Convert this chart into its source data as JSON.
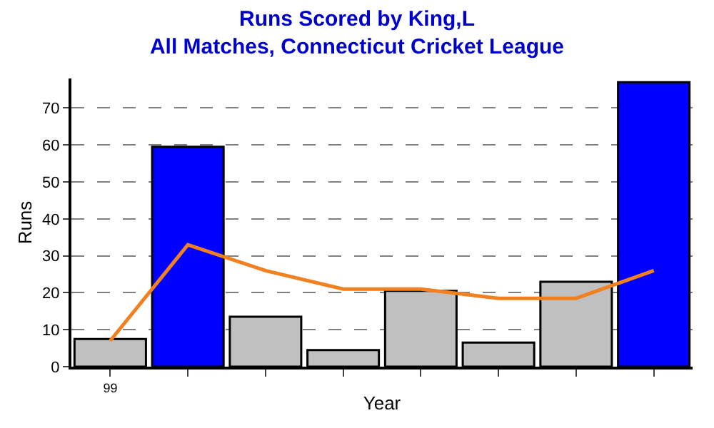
{
  "chart_data": {
    "type": "bar",
    "title": "Runs Scored by King,L",
    "subtitle": "All Matches, Connecticut Cricket League",
    "xlabel": "Year",
    "ylabel": "Runs",
    "categories": [
      "99",
      null,
      null,
      null,
      null,
      null,
      null,
      null
    ],
    "series": [
      {
        "colors": [
          "#c0c0c0",
          "#0000ff",
          "#c0c0c0",
          "#c0c0c0",
          "#c0c0c0",
          "#c0c0c0",
          "#c0c0c0",
          "#0000ff"
        ],
        "values": [
          7.5,
          59.5,
          13.5,
          4.5,
          20.5,
          6.5,
          23,
          77
        ]
      },
      {
        "type": "line",
        "color": "#f08020",
        "values": [
          7,
          33,
          26,
          21,
          21,
          18.5,
          18.5,
          26
        ]
      }
    ],
    "ylim": [
      0,
      78
    ],
    "yticks": [
      0,
      10,
      20,
      30,
      40,
      50,
      60,
      70
    ],
    "grid": "y",
    "marker": "none",
    "line_style": "solid"
  }
}
